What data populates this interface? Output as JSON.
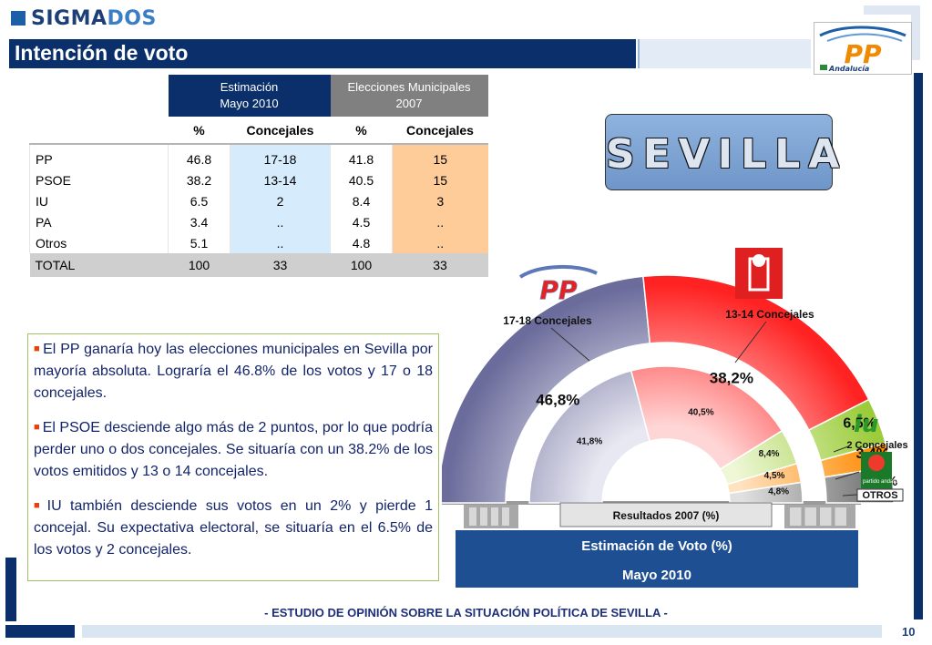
{
  "brand": {
    "part1": "SIGMA",
    "part2": "DOS"
  },
  "title": "Intención de voto",
  "pp_logo": {
    "text": "PP",
    "sub": "Andalucía"
  },
  "city": "SEVILLA",
  "table": {
    "group_estimacion": "Estimación",
    "group_estimacion_sub": "Mayo  2010",
    "group_elecciones": "Elecciones Municipales",
    "group_elecciones_sub": "2007",
    "col_pct": "%",
    "col_concejales": "Concejales",
    "rows": [
      {
        "party": "PP",
        "est_pct": "46.8",
        "est_conc": "17-18",
        "el_pct": "41.8",
        "el_conc": "15"
      },
      {
        "party": "PSOE",
        "est_pct": "38.2",
        "est_conc": "13-14",
        "el_pct": "40.5",
        "el_conc": "15"
      },
      {
        "party": "IU",
        "est_pct": "6.5",
        "est_conc": "2",
        "el_pct": "8.4",
        "el_conc": "3"
      },
      {
        "party": "PA",
        "est_pct": "3.4",
        "est_conc": "..",
        "el_pct": "4.5",
        "el_conc": ".."
      },
      {
        "party": "Otros",
        "est_pct": "5.1",
        "est_conc": "..",
        "el_pct": "4.8",
        "el_conc": ".."
      }
    ],
    "total": {
      "label": "TOTAL",
      "est_pct": "100",
      "est_conc": "33",
      "el_pct": "100",
      "el_conc": "33"
    }
  },
  "bullets": [
    "El PP ganaría hoy las elecciones municipales en Sevilla por mayoría absoluta. Lograría el 46.8% de los votos y 17 o 18 concejales.",
    "El PSOE desciende algo más de 2 puntos, por lo que podría perder uno o dos concejales. Se situaría con un 38.2% de los votos emitidos y 13 o 14 concejales.",
    "IU también desciende sus votos en un 2% y pierde 1 concejal. Su expectativa electoral, se situaría en el 6.5% de los votos y 2 concejales."
  ],
  "chart_data": {
    "type": "pie",
    "subtype": "semicircular-hemicycle",
    "title": "Estimación de Voto (%)",
    "subtitle": "Mayo  2010",
    "inner_label": "Resultados 2007 (%)",
    "categories": [
      "PP",
      "PSOE",
      "IU",
      "PA",
      "Otros"
    ],
    "series": [
      {
        "name": "Estimación de Voto (%)",
        "values": [
          46.8,
          38.2,
          6.5,
          3.4,
          5.1
        ],
        "labels": [
          "46,8%",
          "38,2%",
          "6,5%",
          "3,4%",
          "5.1%"
        ]
      },
      {
        "name": "Resultados 2007 (%)",
        "values": [
          41.8,
          40.5,
          8.4,
          4.5,
          4.8
        ],
        "labels": [
          "41,8%",
          "40,5%",
          "8,4%",
          "4,5%",
          "4,8%"
        ]
      }
    ],
    "colors": [
      "#6c6c9c",
      "#ff2222",
      "#9ccc3c",
      "#ff8a00",
      "#6e6e6e"
    ],
    "annotations": {
      "pp": "17-18  Concejales",
      "psoe": "13-14 Concejales",
      "iu": "2 Concejales",
      "otros": "OTROS",
      "pa_badge": "partido andalucista"
    }
  },
  "footer": "- ESTUDIO DE OPINIÓN SOBRE LA SITUACIÓN POLÍTICA DE SEVILLA  -",
  "page_number": "10"
}
